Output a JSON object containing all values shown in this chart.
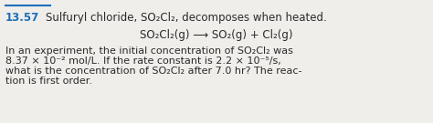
{
  "problem_number": "13.57",
  "number_color": "#1a6fba",
  "line_color": "#1a6fba",
  "background_color": "#f0eeeb",
  "title_text": "Sulfuryl chloride, SO₂Cl₂, decomposes when heated.",
  "equation_text": "SO₂Cl₂(g) ⟶ SO₂(g) + Cl₂(g)",
  "body_text_line1": "In an experiment, the initial concentration of SO₂Cl₂ was",
  "body_text_line2": "8.37 × 10⁻² mol/L. If the rate constant is 2.2 × 10⁻⁵/s,",
  "body_text_line3": "what is the concentration of SO₂Cl₂ after 7.0 hr? The reac-",
  "body_text_line4": "tion is first order.",
  "font_size_title": 8.5,
  "font_size_eq": 8.5,
  "font_size_body": 8.0,
  "text_color": "#2a2a2a"
}
